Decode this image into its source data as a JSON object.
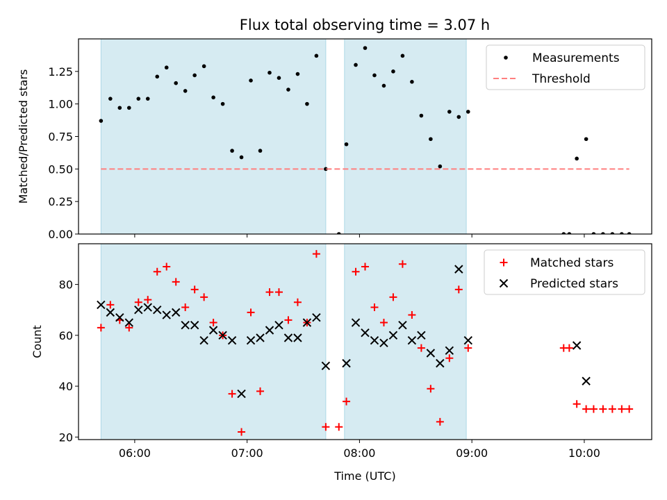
{
  "title": "Flux total observing time = 3.07 h",
  "colors": {
    "shade": "#add8e6",
    "measurement": "#000000",
    "threshold": "#ff7f7f",
    "matched": "#ff0000",
    "predicted": "#000000"
  },
  "chart_data": [
    {
      "type": "scatter",
      "name": "top-panel",
      "ylabel": "Matched/Predicted stars",
      "xlim": [
        "05:30",
        "10:36"
      ],
      "ylim": [
        0,
        1.5
      ],
      "yticks": [
        0.0,
        0.25,
        0.5,
        0.75,
        1.0,
        1.25
      ],
      "ytick_labels": [
        "0.00",
        "0.25",
        "0.50",
        "0.75",
        "1.00",
        "1.25"
      ],
      "grid": false,
      "legend_position": "top-right",
      "shaded_intervals": [
        [
          "05:42",
          "07:42"
        ],
        [
          "07:52",
          "08:57"
        ]
      ],
      "series": [
        {
          "name": "Measurements",
          "kind": "scatter",
          "points": [
            [
              "05:42",
              0.87
            ],
            [
              "05:47",
              1.04
            ],
            [
              "05:52",
              0.97
            ],
            [
              "05:57",
              0.97
            ],
            [
              "06:02",
              1.04
            ],
            [
              "06:07",
              1.04
            ],
            [
              "06:12",
              1.21
            ],
            [
              "06:17",
              1.28
            ],
            [
              "06:22",
              1.16
            ],
            [
              "06:27",
              1.1
            ],
            [
              "06:32",
              1.22
            ],
            [
              "06:37",
              1.29
            ],
            [
              "06:42",
              1.05
            ],
            [
              "06:47",
              1.0
            ],
            [
              "06:52",
              0.64
            ],
            [
              "06:57",
              0.59
            ],
            [
              "07:02",
              1.18
            ],
            [
              "07:07",
              0.64
            ],
            [
              "07:12",
              1.24
            ],
            [
              "07:17",
              1.2
            ],
            [
              "07:22",
              1.11
            ],
            [
              "07:27",
              1.23
            ],
            [
              "07:32",
              1.0
            ],
            [
              "07:37",
              1.37
            ],
            [
              "07:42",
              0.5
            ],
            [
              "07:49",
              0.0
            ],
            [
              "07:53",
              0.69
            ],
            [
              "07:58",
              1.3
            ],
            [
              "08:03",
              1.43
            ],
            [
              "08:08",
              1.22
            ],
            [
              "08:13",
              1.14
            ],
            [
              "08:18",
              1.25
            ],
            [
              "08:23",
              1.37
            ],
            [
              "08:28",
              1.17
            ],
            [
              "08:33",
              0.91
            ],
            [
              "08:38",
              0.73
            ],
            [
              "08:43",
              0.52
            ],
            [
              "08:48",
              0.94
            ],
            [
              "08:53",
              0.9
            ],
            [
              "08:58",
              0.94
            ],
            [
              "09:49",
              0.0
            ],
            [
              "09:52",
              0.0
            ],
            [
              "09:56",
              0.58
            ],
            [
              "10:01",
              0.73
            ],
            [
              "10:05",
              0.0
            ],
            [
              "10:10",
              0.0
            ],
            [
              "10:15",
              0.0
            ],
            [
              "10:20",
              0.0
            ],
            [
              "10:24",
              0.0
            ]
          ]
        },
        {
          "name": "Threshold",
          "kind": "line",
          "style": "dashed",
          "points": [
            [
              "05:42",
              0.5
            ],
            [
              "10:24",
              0.5
            ]
          ]
        }
      ]
    },
    {
      "type": "scatter",
      "name": "bottom-panel",
      "xlabel": "Time (UTC)",
      "ylabel": "Count",
      "xlim": [
        "05:30",
        "10:36"
      ],
      "ylim": [
        19,
        96
      ],
      "xticks": [
        "06:00",
        "07:00",
        "08:00",
        "09:00",
        "10:00"
      ],
      "yticks": [
        20,
        40,
        60,
        80
      ],
      "grid": false,
      "legend_position": "top-right",
      "shaded_intervals": [
        [
          "05:42",
          "07:42"
        ],
        [
          "07:52",
          "08:57"
        ]
      ],
      "series": [
        {
          "name": "Matched stars",
          "marker": "+",
          "points": [
            [
              "05:42",
              63
            ],
            [
              "05:47",
              72
            ],
            [
              "05:52",
              66
            ],
            [
              "05:57",
              63
            ],
            [
              "06:02",
              73
            ],
            [
              "06:07",
              74
            ],
            [
              "06:12",
              85
            ],
            [
              "06:17",
              87
            ],
            [
              "06:22",
              81
            ],
            [
              "06:27",
              71
            ],
            [
              "06:32",
              78
            ],
            [
              "06:37",
              75
            ],
            [
              "06:42",
              65
            ],
            [
              "06:47",
              60
            ],
            [
              "06:52",
              37
            ],
            [
              "06:57",
              22
            ],
            [
              "07:02",
              69
            ],
            [
              "07:07",
              38
            ],
            [
              "07:12",
              77
            ],
            [
              "07:17",
              77
            ],
            [
              "07:22",
              66
            ],
            [
              "07:27",
              73
            ],
            [
              "07:32",
              65
            ],
            [
              "07:37",
              92
            ],
            [
              "07:42",
              24
            ],
            [
              "07:49",
              24
            ],
            [
              "07:53",
              34
            ],
            [
              "07:58",
              85
            ],
            [
              "08:03",
              87
            ],
            [
              "08:08",
              71
            ],
            [
              "08:13",
              65
            ],
            [
              "08:18",
              75
            ],
            [
              "08:23",
              88
            ],
            [
              "08:28",
              68
            ],
            [
              "08:33",
              55
            ],
            [
              "08:38",
              39
            ],
            [
              "08:43",
              26
            ],
            [
              "08:48",
              51
            ],
            [
              "08:53",
              78
            ],
            [
              "08:58",
              55
            ],
            [
              "09:49",
              55
            ],
            [
              "09:52",
              55
            ],
            [
              "09:56",
              33
            ],
            [
              "10:01",
              31
            ],
            [
              "10:05",
              31
            ],
            [
              "10:10",
              31
            ],
            [
              "10:15",
              31
            ],
            [
              "10:20",
              31
            ],
            [
              "10:24",
              31
            ]
          ]
        },
        {
          "name": "Predicted stars",
          "marker": "x",
          "points": [
            [
              "05:42",
              72
            ],
            [
              "05:47",
              69
            ],
            [
              "05:52",
              67
            ],
            [
              "05:57",
              65
            ],
            [
              "06:02",
              70
            ],
            [
              "06:07",
              71
            ],
            [
              "06:12",
              70
            ],
            [
              "06:17",
              68
            ],
            [
              "06:22",
              69
            ],
            [
              "06:27",
              64
            ],
            [
              "06:32",
              64
            ],
            [
              "06:37",
              58
            ],
            [
              "06:42",
              62
            ],
            [
              "06:47",
              60
            ],
            [
              "06:52",
              58
            ],
            [
              "06:57",
              37
            ],
            [
              "07:02",
              58
            ],
            [
              "07:07",
              59
            ],
            [
              "07:12",
              62
            ],
            [
              "07:17",
              64
            ],
            [
              "07:22",
              59
            ],
            [
              "07:27",
              59
            ],
            [
              "07:32",
              65
            ],
            [
              "07:37",
              67
            ],
            [
              "07:42",
              48
            ],
            [
              "07:53",
              49
            ],
            [
              "07:58",
              65
            ],
            [
              "08:03",
              61
            ],
            [
              "08:08",
              58
            ],
            [
              "08:13",
              57
            ],
            [
              "08:18",
              60
            ],
            [
              "08:23",
              64
            ],
            [
              "08:28",
              58
            ],
            [
              "08:33",
              60
            ],
            [
              "08:38",
              53
            ],
            [
              "08:43",
              49
            ],
            [
              "08:48",
              54
            ],
            [
              "08:53",
              86
            ],
            [
              "08:58",
              58
            ],
            [
              "09:56",
              56
            ],
            [
              "10:01",
              42
            ]
          ]
        }
      ]
    }
  ]
}
